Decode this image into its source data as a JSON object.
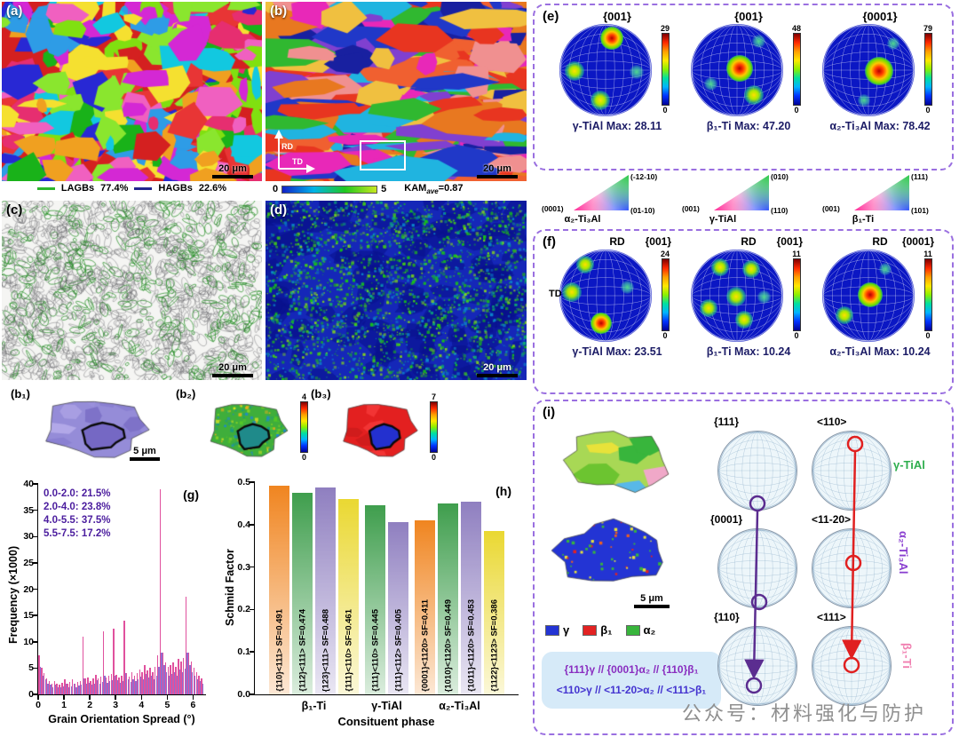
{
  "panels": {
    "a": {
      "label": "(a)",
      "scalebar": "20 μm"
    },
    "b": {
      "label": "(b)",
      "scalebar": "20 μm",
      "rd": "RD",
      "td": "TD"
    },
    "c": {
      "label": "(c)",
      "scalebar": "20 μm"
    },
    "d": {
      "label": "(d)",
      "scalebar": "20 μm"
    }
  },
  "boundary_legend": {
    "lagbs": "LAGBs",
    "lagbs_pct": "77.4%",
    "hagbs": "HAGBs",
    "hagbs_pct": "22.6%",
    "lagbs_color": "#2db52d",
    "hagbs_color": "#23268e"
  },
  "kam_legend": {
    "min": "0",
    "max": "5",
    "label": "KAM",
    "sub": "ave",
    "value": "=0.87"
  },
  "insets": {
    "b1": {
      "label": "(b₁)",
      "scalebar": "5 μm"
    },
    "b2": {
      "label": "(b₂)",
      "cb_max": "4",
      "cb_min": "0"
    },
    "b3": {
      "label": "(b₃)",
      "cb_max": "7",
      "cb_min": "0"
    }
  },
  "panel_e": {
    "label": "(e)",
    "figs": [
      {
        "hkl": "{001}",
        "cb_max": "29",
        "cb_min": "0",
        "caption": "γ-TiAl Max: 28.11"
      },
      {
        "hkl": "{001}",
        "cb_max": "48",
        "cb_min": "0",
        "caption": "β₁-Ti Max: 47.20"
      },
      {
        "hkl": "{0001}",
        "cb_max": "79",
        "cb_min": "0",
        "caption": "α₂-Ti₃Al Max: 78.42"
      }
    ]
  },
  "color_keys": [
    {
      "name": "α₂-Ti₃Al",
      "c1": "(0001)",
      "c2": "(-12-10)",
      "c3": "(01-10)"
    },
    {
      "name": "γ-TiAl",
      "c1": "(001)",
      "c2": "(010)",
      "c3": "(110)"
    },
    {
      "name": "β₁-Ti",
      "c1": "(001)",
      "c2": "(111)",
      "c3": "(101)"
    }
  ],
  "panel_f": {
    "label": "(f)",
    "figs": [
      {
        "rd": "RD",
        "td": "TD",
        "hkl": "{001}",
        "cb_max": "24",
        "cb_min": "0",
        "caption": "γ-TiAl Max: 23.51"
      },
      {
        "rd": "RD",
        "hkl": "{001}",
        "cb_max": "11",
        "cb_min": "0",
        "caption": "β₁-Ti Max: 10.24"
      },
      {
        "rd": "RD",
        "hkl": "{0001}",
        "cb_max": "11",
        "cb_min": "0",
        "caption": "α₂-Ti₃Al Max: 10.24"
      }
    ]
  },
  "chart_data": [
    {
      "id": "g",
      "type": "bar",
      "label": "(g)",
      "xlabel": "Grain Orientation Spread (°)",
      "ylabel": "Frequency (×1000)",
      "xlim": [
        0,
        6.5
      ],
      "ylim": [
        0,
        40
      ],
      "xticks": [
        0,
        1,
        2,
        3,
        4,
        5,
        6
      ],
      "yticks": [
        0,
        5,
        10,
        15,
        20,
        25,
        30,
        35,
        40
      ],
      "annotations": [
        "0.0-2.0: 21.5%",
        "2.0-4.0: 23.8%",
        "4.0-5.5: 37.5%",
        "5.5-7.5: 17.2%"
      ],
      "x_start": 0.05,
      "bin_width": 0.1,
      "series": [
        {
          "name": "series-1",
          "color": "#e0519e",
          "values": [
            7.5,
            5,
            4,
            3,
            2.5,
            2,
            2.5,
            2,
            1.8,
            2.2,
            2.8,
            2,
            2.3,
            2.8,
            2,
            2.4,
            2.6,
            11,
            3,
            3.2,
            2.6,
            3,
            3.8,
            3,
            3.4,
            12,
            3.2,
            3.6,
            3.9,
            12.5,
            3.8,
            3.2,
            3.5,
            14,
            4,
            3.4,
            4.2,
            3.6,
            4,
            4.8,
            4.2,
            5.5,
            4.6,
            5,
            4.2,
            5.2,
            7.5,
            39,
            8,
            6,
            5.2,
            5.6,
            6,
            5.2,
            6.8,
            6.2,
            7,
            18.5,
            8,
            6.2,
            5,
            4.2,
            3.5,
            3
          ]
        },
        {
          "name": "series-2",
          "color": "#8e6fd2",
          "values": [
            5.3,
            3.5,
            2.8,
            2.1,
            1.8,
            1.4,
            1.8,
            1.4,
            1.3,
            1.5,
            2,
            1.4,
            1.6,
            2,
            1.4,
            1.7,
            1.8,
            3,
            2.1,
            2.2,
            1.8,
            2.1,
            2.7,
            2.1,
            2.4,
            3.5,
            2.2,
            2.5,
            2.7,
            3.5,
            2.7,
            2.2,
            2.5,
            4,
            2.8,
            2.4,
            2.9,
            2.5,
            2.8,
            3.4,
            2.9,
            3.9,
            3.2,
            3.5,
            2.9,
            3.6,
            5.3,
            8,
            5.6,
            4.2,
            3.6,
            3.9,
            4.2,
            3.6,
            4.8,
            4.3,
            4.9,
            8,
            5.6,
            4.3,
            3.5,
            2.9,
            2.5,
            2.1
          ]
        }
      ]
    },
    {
      "id": "h",
      "type": "bar",
      "label": "(h)",
      "xlabel": "Consituent phase",
      "ylabel": "Schmid Factor",
      "ylim": [
        0,
        0.5
      ],
      "yticks": [
        "0.0",
        "0.1",
        "0.2",
        "0.3",
        "0.4",
        "0.5"
      ],
      "groups": [
        {
          "name": "β₁-Ti",
          "bars": [
            {
              "label": "{110}<111> SF=0.491",
              "value": 0.491,
              "color": "#f08520"
            },
            {
              "label": "{112}<111> SF=0.474",
              "value": 0.474,
              "color": "#3f9e4d"
            },
            {
              "label": "{123}<111> SF=0.488",
              "value": 0.488,
              "color": "#8f7fc0"
            },
            {
              "label": "{111}<110> SF=0.461",
              "value": 0.461,
              "color": "#ead832"
            }
          ]
        },
        {
          "name": "γ-TiAl",
          "bars": [
            {
              "label": "{111}<110> SF=0.445",
              "value": 0.445,
              "color": "#3f9e4d"
            },
            {
              "label": "{111}<112> SF=0.405",
              "value": 0.405,
              "color": "#8f7fc0"
            }
          ]
        },
        {
          "name": "α₂-Ti₃Al",
          "bars": [
            {
              "label": "{0001}<1120> SF=0.411",
              "value": 0.411,
              "color": "#f08520"
            },
            {
              "label": "{1010}<1120> SF=0.449",
              "value": 0.449,
              "color": "#3f9e4d"
            },
            {
              "label": "{1011}<1120> SF=0.453",
              "value": 0.453,
              "color": "#8f7fc0"
            },
            {
              "label": "{1122}<1123> SF=0.386",
              "value": 0.386,
              "color": "#ead832"
            }
          ]
        }
      ]
    }
  ],
  "panel_i": {
    "label": "(i)",
    "scalebar": "5 μm",
    "legend": [
      {
        "name": "γ",
        "color": "#2334d4"
      },
      {
        "name": "β₁",
        "color": "#e32222"
      },
      {
        "name": "α₂",
        "color": "#38b53c"
      }
    ],
    "pf_labels": [
      [
        "{111}",
        "<110>"
      ],
      [
        "{0001}",
        "<11-20>"
      ],
      [
        "{110}",
        "<111>"
      ]
    ],
    "phase_labels": [
      {
        "text": "γ-TiAl",
        "color": "#2fae4e"
      },
      {
        "text": "α₂-Ti₃Al",
        "color": "#8a3fd0"
      },
      {
        "text": "β₁-Ti",
        "color": "#f07fb0"
      }
    ],
    "relation_line1": "{111}γ // {0001}α₂ // {110}β₁",
    "relation_line2": "<110>γ // <11-20>α₂ // <111>β₁"
  },
  "watermark": "公众号：材料强化与防护"
}
